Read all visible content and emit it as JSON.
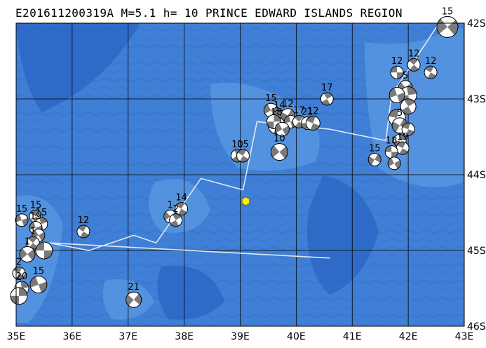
{
  "header": {
    "event_id": "E201611200319A",
    "magnitude": "M=5.1",
    "depth": "h= 10",
    "region": "PRINCE EDWARD ISLANDS REGION"
  },
  "map": {
    "lon_range": [
      35,
      43
    ],
    "lat_range": [
      -46,
      -42
    ],
    "x_ticks": [
      {
        "lon": 35,
        "label": "35E"
      },
      {
        "lon": 36,
        "label": "36E"
      },
      {
        "lon": 37,
        "label": "37E"
      },
      {
        "lon": 38,
        "label": "38E"
      },
      {
        "lon": 39,
        "label": "39E"
      },
      {
        "lon": 40,
        "label": "40E"
      },
      {
        "lon": 41,
        "label": "41E"
      },
      {
        "lon": 42,
        "label": "42E"
      },
      {
        "lon": 43,
        "label": "43E"
      }
    ],
    "y_ticks": [
      {
        "lat": -42,
        "label": "42S"
      },
      {
        "lat": -43,
        "label": "43S"
      },
      {
        "lat": -44,
        "label": "44S"
      },
      {
        "lat": -45,
        "label": "45S"
      },
      {
        "lat": -46,
        "label": "46S"
      }
    ],
    "colors": {
      "ocean_deep": "#2b68c8",
      "ocean": "#4080d8",
      "ridge": "#6ea8e8",
      "grid": "#000000",
      "plate_boundary": "#d8e4f0",
      "epicenter": "#ffee00"
    },
    "epicenter": {
      "lon": 39.1,
      "lat": -44.35
    },
    "plate_boundary": [
      [
        40.6,
        -45.1
      ],
      [
        35.6,
        -44.9
      ],
      [
        36.3,
        -45.0
      ],
      [
        37.1,
        -44.8
      ],
      [
        37.5,
        -44.9
      ],
      [
        38.3,
        -44.05
      ],
      [
        39.05,
        -44.2
      ],
      [
        39.3,
        -43.3
      ],
      [
        40.6,
        -43.4
      ],
      [
        41.6,
        -43.55
      ],
      [
        41.7,
        -42.95
      ],
      [
        42.55,
        -42.0
      ]
    ],
    "events": [
      {
        "lon": 42.7,
        "lat": -42.05,
        "depth": "15",
        "size": 15,
        "rot": 20
      },
      {
        "lon": 42.1,
        "lat": -42.55,
        "depth": "12",
        "size": 9,
        "rot": 100
      },
      {
        "lon": 42.4,
        "lat": -42.65,
        "depth": "12",
        "size": 9,
        "rot": 90
      },
      {
        "lon": 41.8,
        "lat": -42.65,
        "depth": "12",
        "size": 9,
        "rot": 60
      },
      {
        "lon": 41.95,
        "lat": -42.85,
        "depth": "5",
        "size": 10,
        "rot": 200
      },
      {
        "lon": 42.0,
        "lat": -42.95,
        "depth": "",
        "size": 12,
        "rot": 140
      },
      {
        "lon": 41.8,
        "lat": -42.95,
        "depth": "",
        "size": 11,
        "rot": 40
      },
      {
        "lon": 42.0,
        "lat": -43.1,
        "depth": "",
        "size": 11,
        "rot": 300
      },
      {
        "lon": 41.8,
        "lat": -43.25,
        "depth": "",
        "size": 12,
        "rot": 250
      },
      {
        "lon": 41.85,
        "lat": -43.35,
        "depth": "5",
        "size": 11,
        "rot": 180
      },
      {
        "lon": 42.0,
        "lat": -43.4,
        "depth": "",
        "size": 9,
        "rot": 80
      },
      {
        "lon": 41.85,
        "lat": -43.55,
        "depth": "",
        "size": 9,
        "rot": 320
      },
      {
        "lon": 41.9,
        "lat": -43.65,
        "depth": "19",
        "size": 9,
        "rot": 90
      },
      {
        "lon": 41.7,
        "lat": -43.7,
        "depth": "18",
        "size": 9,
        "rot": 60
      },
      {
        "lon": 41.75,
        "lat": -43.85,
        "depth": "",
        "size": 9,
        "rot": 30
      },
      {
        "lon": 41.4,
        "lat": -43.8,
        "depth": "15",
        "size": 9,
        "rot": 0
      },
      {
        "lon": 40.55,
        "lat": -43.0,
        "depth": "17",
        "size": 9,
        "rot": 120
      },
      {
        "lon": 39.55,
        "lat": -43.15,
        "depth": "15",
        "size": 10,
        "rot": 30
      },
      {
        "lon": 39.7,
        "lat": -43.25,
        "depth": "14",
        "size": 11,
        "rot": 90
      },
      {
        "lon": 39.85,
        "lat": -43.22,
        "depth": "12",
        "size": 10,
        "rot": 180
      },
      {
        "lon": 39.65,
        "lat": -43.35,
        "depth": "18",
        "size": 12,
        "rot": 260
      },
      {
        "lon": 39.6,
        "lat": -43.3,
        "depth": "",
        "size": 10,
        "rot": 330
      },
      {
        "lon": 39.9,
        "lat": -43.3,
        "depth": "",
        "size": 9,
        "rot": 45
      },
      {
        "lon": 39.75,
        "lat": -43.4,
        "depth": "",
        "size": 10,
        "rot": 210
      },
      {
        "lon": 40.05,
        "lat": -43.3,
        "depth": "17",
        "size": 9,
        "rot": 100
      },
      {
        "lon": 40.2,
        "lat": -43.32,
        "depth": "21",
        "size": 9,
        "rot": 150
      },
      {
        "lon": 40.3,
        "lat": -43.32,
        "depth": "12",
        "size": 10,
        "rot": 80
      },
      {
        "lon": 39.7,
        "lat": -43.7,
        "depth": "10",
        "size": 12,
        "rot": 20
      },
      {
        "lon": 38.95,
        "lat": -43.75,
        "depth": "10",
        "size": 9,
        "rot": 300
      },
      {
        "lon": 39.05,
        "lat": -43.75,
        "depth": "15",
        "size": 9,
        "rot": 90
      },
      {
        "lon": 36.2,
        "lat": -44.75,
        "depth": "12",
        "size": 9,
        "rot": 90
      },
      {
        "lon": 37.75,
        "lat": -44.55,
        "depth": "1",
        "size": 9,
        "rot": 200
      },
      {
        "lon": 37.95,
        "lat": -44.45,
        "depth": "14",
        "size": 9,
        "rot": 90
      },
      {
        "lon": 37.85,
        "lat": -44.6,
        "depth": "2",
        "size": 9,
        "rot": 120
      },
      {
        "lon": 35.1,
        "lat": -44.6,
        "depth": "15",
        "size": 9,
        "rot": 40
      },
      {
        "lon": 35.35,
        "lat": -44.55,
        "depth": "15",
        "size": 9,
        "rot": 90
      },
      {
        "lon": 35.45,
        "lat": -44.65,
        "depth": "15",
        "size": 9,
        "rot": 130
      },
      {
        "lon": 35.35,
        "lat": -44.7,
        "depth": "19",
        "size": 9,
        "rot": 220
      },
      {
        "lon": 35.4,
        "lat": -44.8,
        "depth": "",
        "size": 9,
        "rot": 30
      },
      {
        "lon": 35.3,
        "lat": -44.9,
        "depth": "1",
        "size": 9,
        "rot": 280
      },
      {
        "lon": 35.2,
        "lat": -45.05,
        "depth": "1",
        "size": 11,
        "rot": 200
      },
      {
        "lon": 35.5,
        "lat": -45.0,
        "depth": "",
        "size": 12,
        "rot": 60
      },
      {
        "lon": 35.05,
        "lat": -45.3,
        "depth": "2",
        "size": 9,
        "rot": 90
      },
      {
        "lon": 35.4,
        "lat": -45.45,
        "depth": "15",
        "size": 12,
        "rot": 40
      },
      {
        "lon": 35.1,
        "lat": -45.5,
        "depth": "20",
        "size": 10,
        "rot": 320
      },
      {
        "lon": 35.05,
        "lat": -45.6,
        "depth": "",
        "size": 12,
        "rot": 150
      },
      {
        "lon": 37.1,
        "lat": -45.65,
        "depth": "21",
        "size": 11,
        "rot": 10
      }
    ]
  }
}
